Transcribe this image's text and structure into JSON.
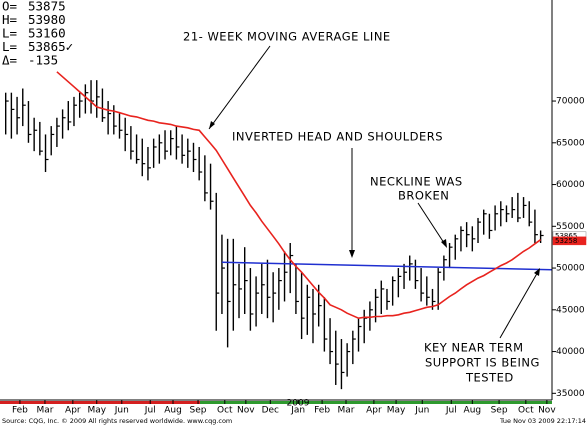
{
  "chart_data": {
    "type": "ohlc",
    "info": [
      {
        "label": "O=",
        "value": "53875"
      },
      {
        "label": "H=",
        "value": "53980"
      },
      {
        "label": "L=",
        "value": "53160"
      },
      {
        "label": "L=",
        "value": "53865✓"
      },
      {
        "label": "Δ=",
        "value": "-135"
      }
    ],
    "annotations": [
      "21- WEEK MOVING AVERAGE LINE",
      "INVERTED HEAD AND SHOULDERS",
      "NECKLINE WAS",
      "BROKEN",
      "KEY NEAR TERM",
      "SUPPORT IS BEING",
      "TESTED"
    ],
    "year_label": "2009",
    "source": "Source: CQG, Inc. © 2009 All rights reserved worldwide. www.cqg.com",
    "timestamp": "Tue Nov 03 2009 22:17:14",
    "price_tags": [
      {
        "value": 53865,
        "label": "53865",
        "color": "#ffffff"
      },
      {
        "value": 53258,
        "label": "53258",
        "color": "#e8231e"
      }
    ],
    "xlim": [
      0,
      97
    ],
    "xticks": [
      {
        "value": 3.5,
        "label": "Feb"
      },
      {
        "value": 7.9,
        "label": "Mar"
      },
      {
        "value": 12.8,
        "label": "Apr"
      },
      {
        "value": 17,
        "label": "May"
      },
      {
        "value": 21.4,
        "label": "Jun"
      },
      {
        "value": 26.4,
        "label": "Jul"
      },
      {
        "value": 30.4,
        "label": "Aug"
      },
      {
        "value": 34.8,
        "label": "Sep"
      },
      {
        "value": 39.5,
        "label": "Oct"
      },
      {
        "value": 43.2,
        "label": "Nov"
      },
      {
        "value": 47.5,
        "label": "Dec"
      },
      {
        "value": 52.4,
        "label": "Jan"
      },
      {
        "value": 56.6,
        "label": "Feb"
      },
      {
        "value": 60.8,
        "label": "Mar"
      },
      {
        "value": 65.7,
        "label": "Apr"
      },
      {
        "value": 69.6,
        "label": "May"
      },
      {
        "value": 74.2,
        "label": "Jun"
      },
      {
        "value": 79.3,
        "label": "Jul"
      },
      {
        "value": 83,
        "label": "Aug"
      },
      {
        "value": 87.7,
        "label": "Sep"
      },
      {
        "value": 92.4,
        "label": "Oct"
      },
      {
        "value": 96.1,
        "label": "Nov"
      }
    ],
    "ylim": [
      34200,
      82100
    ],
    "yticks": [
      35000,
      40000,
      45000,
      50000,
      55000,
      60000,
      65000,
      70000
    ],
    "x": [
      1,
      2,
      3,
      4,
      5,
      6,
      7,
      8,
      9,
      10,
      11,
      12,
      13,
      14,
      15,
      16,
      17,
      18,
      19,
      20,
      21,
      22,
      23,
      24,
      25,
      26,
      27,
      28,
      29,
      30,
      31,
      32,
      33,
      34,
      35,
      36,
      37,
      38,
      39,
      40,
      41,
      42,
      43,
      44,
      45,
      46,
      47,
      48,
      49,
      50,
      51,
      52,
      53,
      54,
      55,
      56,
      57,
      58,
      59,
      60,
      61,
      62,
      63,
      64,
      65,
      66,
      67,
      68,
      69,
      70,
      71,
      72,
      73,
      74,
      75,
      76,
      77,
      78,
      79,
      80,
      81,
      82,
      83,
      84,
      85,
      86,
      87,
      88,
      89,
      90,
      91,
      92,
      93,
      94,
      95
    ],
    "high": [
      71000,
      71000,
      70500,
      71500,
      70000,
      68000,
      67500,
      66000,
      67000,
      68000,
      69000,
      70000,
      70500,
      71000,
      72000,
      72500,
      72500,
      71500,
      70000,
      69500,
      68500,
      68000,
      67000,
      66000,
      65500,
      64500,
      65500,
      66000,
      66500,
      66500,
      67000,
      66000,
      65500,
      65000,
      64500,
      63500,
      62500,
      59000,
      54000,
      53500,
      53500,
      50500,
      52500,
      50000,
      49000,
      50500,
      51000,
      49500,
      50000,
      52000,
      53000,
      50500,
      49500,
      48000,
      47500,
      48000,
      46500,
      44000,
      42500,
      41500,
      41000,
      42500,
      44000,
      45000,
      46000,
      47500,
      48500,
      47500,
      49000,
      50000,
      50500,
      51500,
      51000,
      50000,
      49000,
      47500,
      50000,
      51500,
      53000,
      54000,
      55000,
      55500,
      55000,
      56000,
      57000,
      56500,
      57500,
      58000,
      57500,
      58500,
      59000,
      58500,
      58000,
      57000,
      54500
    ],
    "low": [
      66000,
      65500,
      66000,
      67000,
      65000,
      64000,
      63500,
      61500,
      63500,
      64500,
      65500,
      66500,
      67000,
      68000,
      68500,
      68500,
      68000,
      67500,
      66000,
      66000,
      65500,
      64000,
      63000,
      62500,
      61000,
      60500,
      62000,
      62500,
      63000,
      63500,
      63000,
      62500,
      62000,
      61500,
      60500,
      58000,
      57000,
      42500,
      44500,
      40500,
      42500,
      44000,
      44500,
      42500,
      43000,
      44500,
      44000,
      43500,
      45000,
      46000,
      47000,
      44500,
      41500,
      42000,
      41000,
      43000,
      40000,
      38500,
      36000,
      35500,
      37000,
      38500,
      40000,
      41000,
      42500,
      43500,
      44500,
      45000,
      45500,
      46500,
      47500,
      48500,
      47500,
      46000,
      45500,
      45000,
      45000,
      48500,
      50000,
      51000,
      52000,
      52500,
      52000,
      53000,
      54000,
      53500,
      54500,
      55000,
      55500,
      56000,
      55500,
      56000,
      55000,
      53000,
      53000
    ],
    "close": [
      70000,
      69000,
      68000,
      69500,
      66000,
      66500,
      64000,
      63000,
      66000,
      67000,
      68000,
      67500,
      69500,
      70000,
      71000,
      70000,
      70500,
      68000,
      68500,
      67000,
      66500,
      66000,
      64000,
      63000,
      62500,
      62000,
      64500,
      65000,
      64000,
      65500,
      64500,
      63500,
      64000,
      63000,
      61500,
      59000,
      58000,
      47000,
      50000,
      46000,
      48000,
      47500,
      48500,
      44500,
      47000,
      48000,
      46500,
      47000,
      48500,
      49500,
      51500,
      46000,
      44000,
      46500,
      44500,
      45500,
      41500,
      40000,
      38500,
      37500,
      40000,
      41500,
      43000,
      44000,
      45000,
      46500,
      47500,
      46000,
      48500,
      49000,
      49500,
      50500,
      48500,
      47000,
      46500,
      46000,
      49500,
      51000,
      52500,
      53500,
      54500,
      54000,
      53500,
      55500,
      56500,
      54500,
      56500,
      57000,
      56500,
      57000,
      56000,
      57500,
      55500,
      54000,
      53900
    ],
    "bar_color": "#000000",
    "moving_average": {
      "color": "#e8231e",
      "values": [
        null,
        null,
        null,
        null,
        null,
        null,
        null,
        null,
        null,
        73500,
        72900,
        72300,
        71700,
        71100,
        70500,
        69900,
        69300,
        69100,
        68900,
        68800,
        68600,
        68400,
        68200,
        68100,
        67900,
        67700,
        67600,
        67400,
        67300,
        67200,
        67000,
        66900,
        66800,
        66600,
        66500,
        65700,
        64900,
        64100,
        63000,
        61900,
        60800,
        59700,
        58600,
        57500,
        56600,
        55600,
        54700,
        53800,
        52900,
        51900,
        51000,
        50200,
        49500,
        48700,
        47900,
        47100,
        46400,
        45600,
        45300,
        45000,
        44600,
        44300,
        44000,
        44100,
        44100,
        44200,
        44200,
        44300,
        44300,
        44400,
        44600,
        44700,
        44900,
        45100,
        45300,
        45400,
        45600,
        46100,
        46600,
        47000,
        47500,
        48000,
        48400,
        48800,
        49100,
        49500,
        49900,
        50300,
        50600,
        51000,
        51500,
        52000,
        52400,
        52900,
        53400
      ]
    },
    "trendline": {
      "color": "#1f2fd0",
      "x": [
        39,
        97
      ],
      "values": [
        50700,
        49800
      ]
    }
  }
}
